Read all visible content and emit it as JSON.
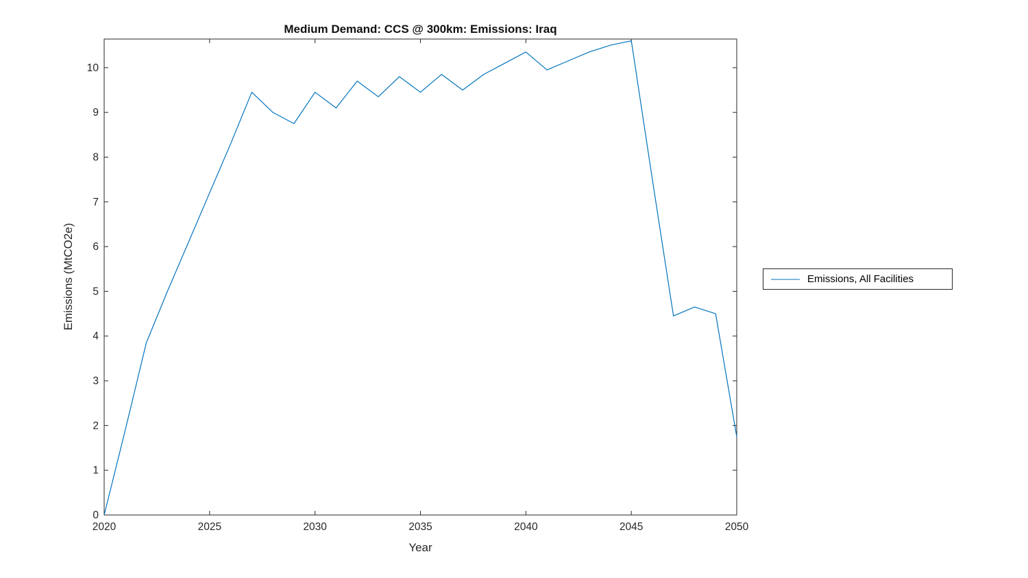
{
  "page": {
    "background": "#ffffff"
  },
  "chart_data": {
    "type": "line",
    "title": "Medium Demand: CCS @ 300km: Emissions: Iraq",
    "xlabel": "Year",
    "ylabel": "Emissions (MtCO2e)",
    "xlim": [
      2020,
      2050
    ],
    "ylim": [
      0,
      10.64
    ],
    "x_ticks": [
      2020,
      2025,
      2030,
      2035,
      2040,
      2045,
      2050
    ],
    "y_ticks": [
      0,
      1,
      2,
      3,
      4,
      5,
      6,
      7,
      8,
      9,
      10
    ],
    "grid": false,
    "legend": {
      "position": "right-outside",
      "entries": [
        "Emissions, All Facilities"
      ]
    },
    "line_color": "#0072BD",
    "axis_color": "#262626",
    "series": [
      {
        "name": "Emissions, All Facilities",
        "x": [
          2020,
          2021,
          2022,
          2023,
          2024,
          2025,
          2026,
          2027,
          2028,
          2029,
          2030,
          2031,
          2032,
          2033,
          2034,
          2035,
          2036,
          2037,
          2038,
          2039,
          2040,
          2041,
          2042,
          2043,
          2044,
          2045,
          2046,
          2047,
          2048,
          2049,
          2050
        ],
        "values": [
          0,
          1.9,
          3.85,
          5.0,
          6.1,
          7.2,
          8.3,
          9.45,
          9.0,
          8.75,
          9.45,
          9.1,
          9.7,
          9.35,
          9.8,
          9.45,
          9.85,
          9.5,
          9.85,
          10.1,
          10.35,
          9.95,
          10.15,
          10.35,
          10.5,
          10.6,
          7.5,
          4.45,
          4.65,
          4.5,
          1.75
        ]
      }
    ]
  }
}
